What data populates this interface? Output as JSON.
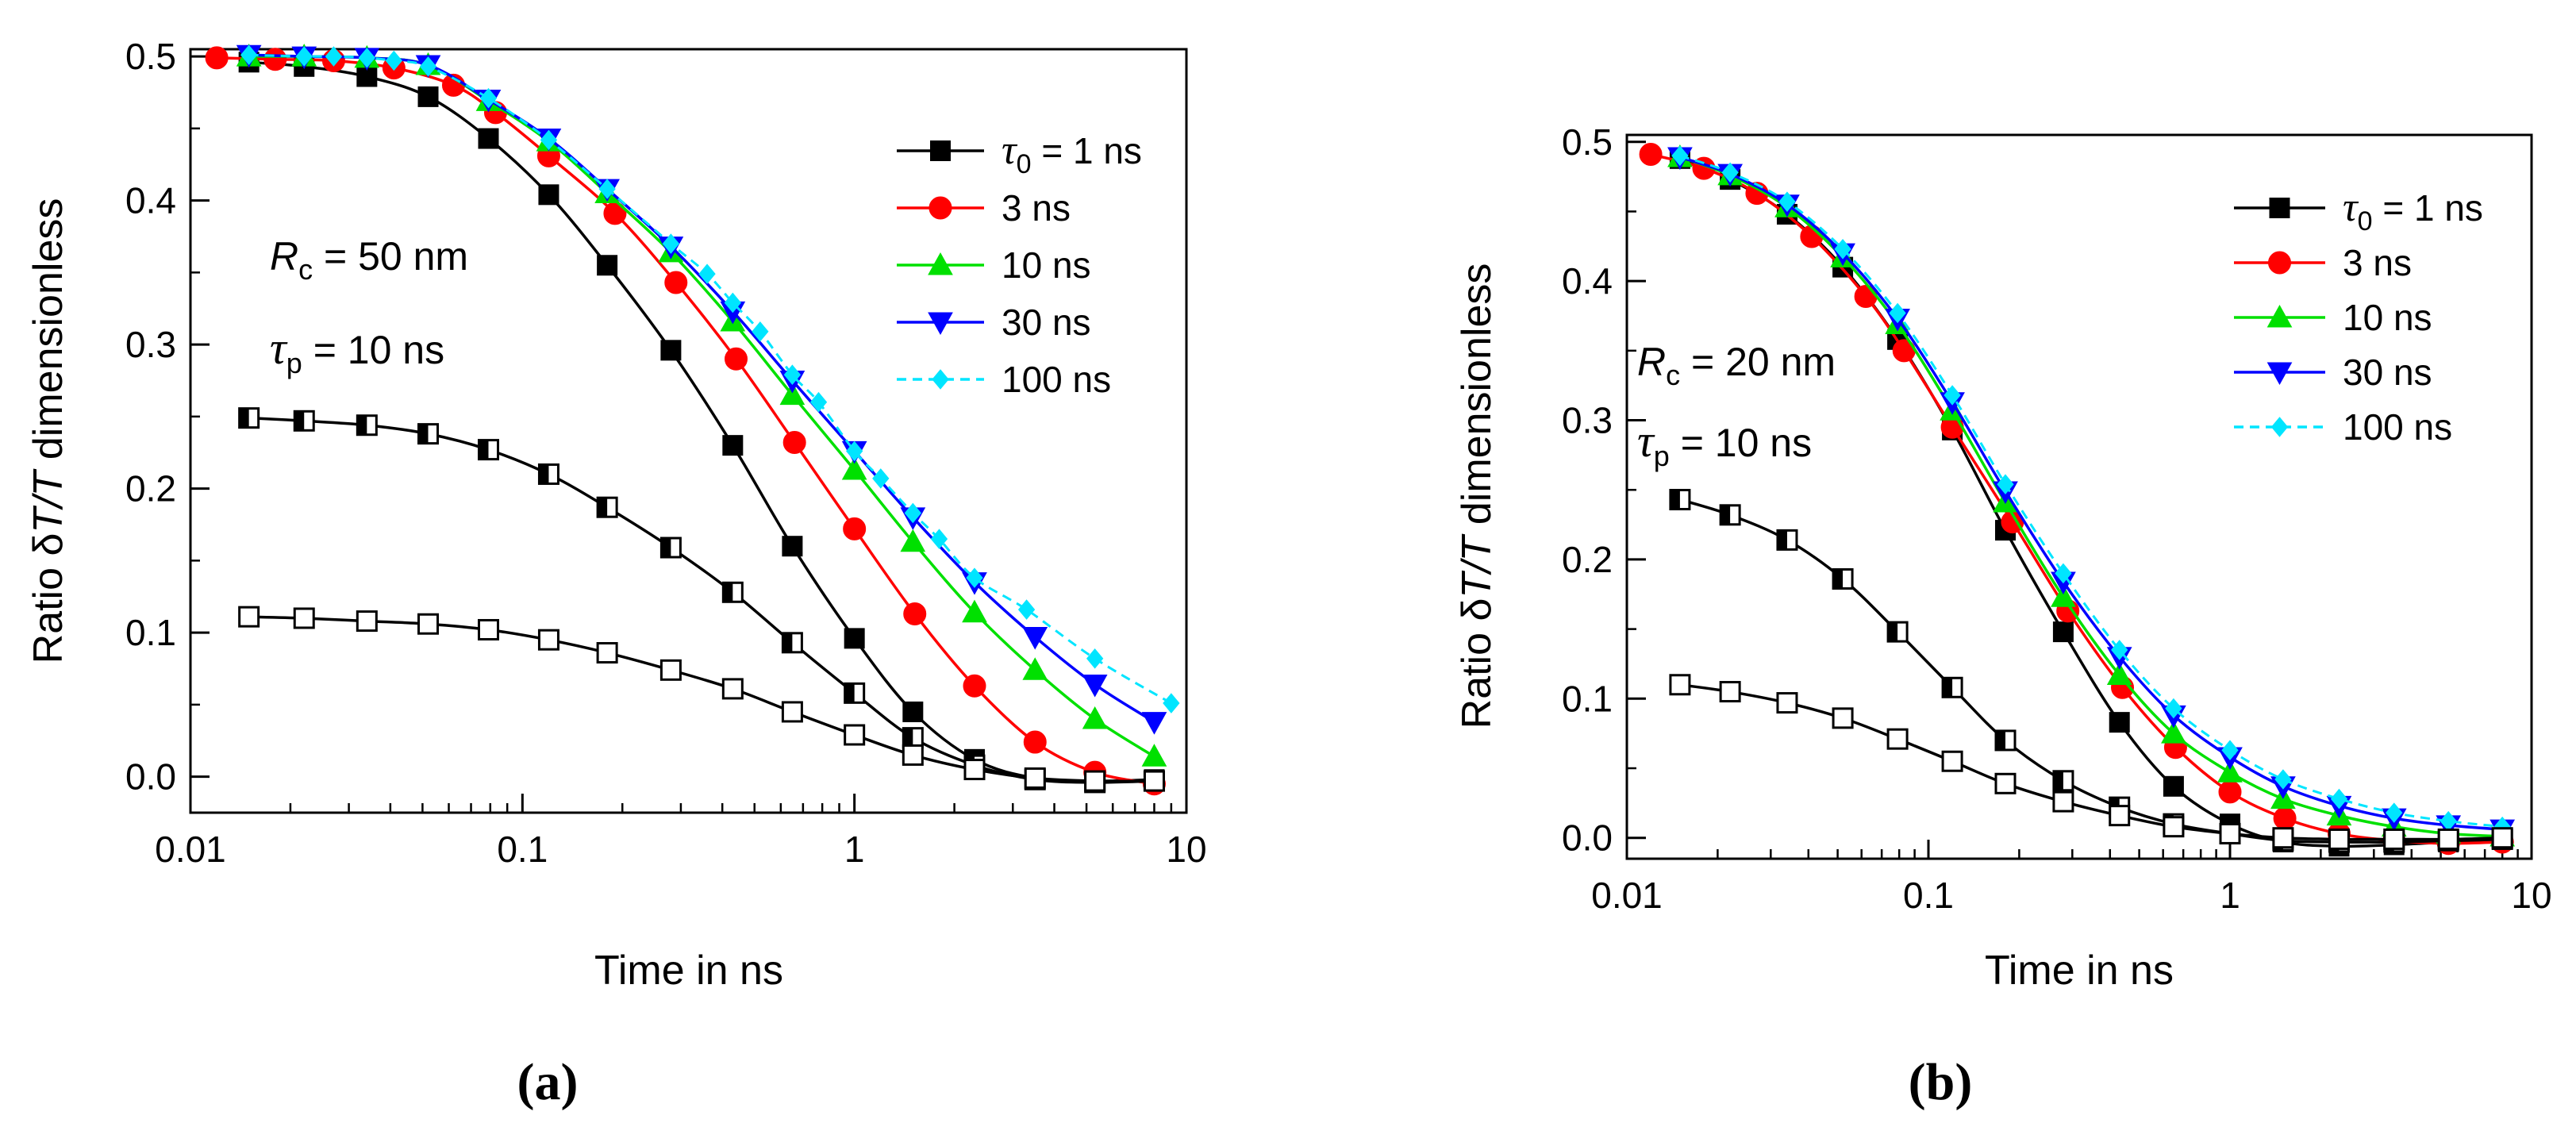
{
  "chart_data": [
    {
      "type": "line",
      "panel_label": "(a)",
      "xscale": "log",
      "xlim": [
        0.01,
        10
      ],
      "ylim": [
        -0.025,
        0.505
      ],
      "xticks": [
        0.01,
        0.1,
        1,
        10
      ],
      "xtick_labels": [
        "0.01",
        "0.1",
        "1",
        "10"
      ],
      "yticks": [
        0.0,
        0.1,
        0.2,
        0.3,
        0.4,
        0.5
      ],
      "ytick_labels": [
        "0.0",
        "0.1",
        "0.2",
        "0.3",
        "0.4",
        "0.5"
      ],
      "xlabel": "Time in ns",
      "ylabel_parts": [
        "Ratio δ",
        "T/T",
        " dimensionless"
      ],
      "annotations": [
        {
          "sym": "R",
          "sub": "c",
          "text": " = 50 nm"
        },
        {
          "sym": "τ",
          "sub": "p",
          "text": " = 10 ns"
        }
      ],
      "legend": [
        {
          "sym": "τ",
          "sub": "0",
          "text": " = 1 ns",
          "series": 0
        },
        {
          "text": "3 ns",
          "series": 1
        },
        {
          "text": "10 ns",
          "series": 2
        },
        {
          "text": "30 ns",
          "series": 3
        },
        {
          "text": "100 ns",
          "series": 4
        }
      ],
      "series": [
        {
          "name": "τ0 = 1 ns",
          "color": "#000000",
          "marker": "square",
          "dash": false,
          "x": [
            0.015,
            0.022,
            0.034,
            0.052,
            0.079,
            0.12,
            0.18,
            0.28,
            0.43,
            0.65,
            1.0,
            1.5,
            2.3,
            3.5,
            5.3,
            8.0
          ],
          "y": [
            0.496,
            0.493,
            0.486,
            0.472,
            0.443,
            0.404,
            0.355,
            0.296,
            0.23,
            0.16,
            0.096,
            0.045,
            0.012,
            -0.001,
            -0.003,
            -0.002
          ]
        },
        {
          "name": "3 ns",
          "color": "#ff0000",
          "marker": "circle",
          "dash": false,
          "x": [
            0.012,
            0.018,
            0.027,
            0.041,
            0.062,
            0.083,
            0.12,
            0.19,
            0.29,
            0.44,
            0.66,
            1.0,
            1.52,
            2.3,
            3.5,
            5.3,
            8.0
          ],
          "y": [
            0.499,
            0.498,
            0.497,
            0.492,
            0.48,
            0.461,
            0.431,
            0.391,
            0.343,
            0.29,
            0.232,
            0.172,
            0.113,
            0.063,
            0.024,
            0.003,
            -0.005
          ]
        },
        {
          "name": "10 ns",
          "color": "#00e000",
          "marker": "triangle-up",
          "dash": false,
          "x": [
            0.015,
            0.022,
            0.034,
            0.052,
            0.079,
            0.12,
            0.18,
            0.28,
            0.43,
            0.65,
            1.0,
            1.5,
            2.3,
            3.5,
            5.3,
            8.0
          ],
          "y": [
            0.5,
            0.5,
            0.499,
            0.494,
            0.469,
            0.441,
            0.405,
            0.364,
            0.316,
            0.265,
            0.213,
            0.163,
            0.114,
            0.074,
            0.04,
            0.014
          ]
        },
        {
          "name": "30 ns",
          "color": "#0000ff",
          "marker": "triangle-down",
          "dash": false,
          "x": [
            0.015,
            0.022,
            0.034,
            0.052,
            0.079,
            0.12,
            0.18,
            0.28,
            0.43,
            0.65,
            1.0,
            1.5,
            2.3,
            3.5,
            5.3,
            8.0
          ],
          "y": [
            0.501,
            0.5,
            0.499,
            0.494,
            0.47,
            0.443,
            0.408,
            0.368,
            0.323,
            0.275,
            0.226,
            0.18,
            0.135,
            0.097,
            0.064,
            0.038
          ]
        },
        {
          "name": "100 ns",
          "color": "#00e5ff",
          "marker": "diamond",
          "dash": true,
          "x": [
            0.015,
            0.022,
            0.027,
            0.034,
            0.041,
            0.052,
            0.079,
            0.12,
            0.18,
            0.28,
            0.36,
            0.43,
            0.52,
            0.65,
            0.78,
            1.0,
            1.2,
            1.5,
            1.8,
            2.3,
            3.3,
            5.3,
            9.0
          ],
          "y": [
            0.501,
            0.5,
            0.5,
            0.499,
            0.497,
            0.493,
            0.471,
            0.442,
            0.408,
            0.37,
            0.349,
            0.329,
            0.309,
            0.279,
            0.26,
            0.226,
            0.207,
            0.183,
            0.165,
            0.138,
            0.116,
            0.082,
            0.051
          ]
        },
        {
          "name": "half-filled squares",
          "color": "#000000",
          "marker": "square-half",
          "dash": false,
          "x": [
            0.015,
            0.022,
            0.034,
            0.052,
            0.079,
            0.12,
            0.18,
            0.28,
            0.43,
            0.65,
            1.0,
            1.5,
            2.3,
            3.5,
            5.3,
            8.0
          ],
          "y": [
            0.249,
            0.247,
            0.244,
            0.238,
            0.227,
            0.21,
            0.187,
            0.159,
            0.128,
            0.093,
            0.058,
            0.027,
            0.008,
            -0.002,
            -0.004,
            -0.003
          ]
        },
        {
          "name": "open squares",
          "color": "#000000",
          "marker": "square-open",
          "dash": false,
          "x": [
            0.015,
            0.022,
            0.034,
            0.052,
            0.079,
            0.12,
            0.18,
            0.28,
            0.43,
            0.65,
            1.0,
            1.5,
            2.3,
            3.5,
            5.3,
            8.0
          ],
          "y": [
            0.111,
            0.11,
            0.108,
            0.106,
            0.102,
            0.095,
            0.086,
            0.074,
            0.061,
            0.045,
            0.029,
            0.015,
            0.005,
            -0.001,
            -0.003,
            -0.003
          ]
        }
      ]
    },
    {
      "type": "line",
      "panel_label": "(b)",
      "xscale": "log",
      "xlim": [
        0.01,
        10
      ],
      "ylim": [
        -0.015,
        0.505
      ],
      "xticks": [
        0.01,
        0.1,
        1,
        10
      ],
      "xtick_labels": [
        "0.01",
        "0.1",
        "1",
        "10"
      ],
      "yticks": [
        0.0,
        0.1,
        0.2,
        0.3,
        0.4,
        0.5
      ],
      "ytick_labels": [
        "0.0",
        "0.1",
        "0.2",
        "0.3",
        "0.4",
        "0.5"
      ],
      "xlabel": "Time in ns",
      "ylabel_parts": [
        "Ratio δ",
        "T/T",
        " dimensionless"
      ],
      "annotations": [
        {
          "sym": "R",
          "sub": "c",
          "text": " = 20 nm"
        },
        {
          "sym": "τ",
          "sub": "p",
          "text": " = 10 ns"
        }
      ],
      "legend": [
        {
          "sym": "τ",
          "sub": "0",
          "text": " = 1 ns",
          "series": 0
        },
        {
          "text": "3 ns",
          "series": 1
        },
        {
          "text": "10 ns",
          "series": 2
        },
        {
          "text": "30 ns",
          "series": 3
        },
        {
          "text": "100 ns",
          "series": 4
        }
      ],
      "series": [
        {
          "name": "τ0 = 1 ns",
          "color": "#000000",
          "marker": "square",
          "dash": false,
          "x": [
            0.015,
            0.022,
            0.034,
            0.052,
            0.079,
            0.12,
            0.18,
            0.28,
            0.43,
            0.65,
            1.0,
            1.5,
            2.3,
            3.5,
            5.3,
            8.0
          ],
          "y": [
            0.488,
            0.473,
            0.448,
            0.41,
            0.358,
            0.293,
            0.221,
            0.148,
            0.083,
            0.037,
            0.01,
            -0.003,
            -0.006,
            -0.005,
            -0.003,
            -0.001
          ]
        },
        {
          "name": "3 ns",
          "color": "#ff0000",
          "marker": "circle",
          "dash": false,
          "x": [
            0.012,
            0.018,
            0.027,
            0.041,
            0.062,
            0.083,
            0.12,
            0.19,
            0.29,
            0.44,
            0.66,
            1.0,
            1.52,
            2.3,
            3.5,
            5.3,
            8.0
          ],
          "y": [
            0.491,
            0.481,
            0.463,
            0.432,
            0.389,
            0.35,
            0.295,
            0.227,
            0.163,
            0.108,
            0.065,
            0.033,
            0.014,
            0.003,
            -0.002,
            -0.004,
            -0.003
          ]
        },
        {
          "name": "10 ns",
          "color": "#00e000",
          "marker": "triangle-up",
          "dash": false,
          "x": [
            0.015,
            0.022,
            0.034,
            0.052,
            0.079,
            0.12,
            0.18,
            0.28,
            0.43,
            0.65,
            1.0,
            1.5,
            2.3,
            3.5,
            5.3,
            8.0
          ],
          "y": [
            0.489,
            0.476,
            0.453,
            0.417,
            0.369,
            0.307,
            0.241,
            0.173,
            0.117,
            0.075,
            0.047,
            0.028,
            0.016,
            0.008,
            0.003,
            0.001
          ]
        },
        {
          "name": "30 ns",
          "color": "#0000ff",
          "marker": "triangle-down",
          "dash": false,
          "x": [
            0.015,
            0.022,
            0.034,
            0.052,
            0.079,
            0.12,
            0.18,
            0.28,
            0.43,
            0.65,
            1.0,
            1.5,
            2.3,
            3.5,
            5.3,
            8.0
          ],
          "y": [
            0.489,
            0.477,
            0.455,
            0.42,
            0.373,
            0.313,
            0.249,
            0.184,
            0.13,
            0.088,
            0.058,
            0.037,
            0.023,
            0.014,
            0.009,
            0.006
          ]
        },
        {
          "name": "100 ns",
          "color": "#00e5ff",
          "marker": "diamond",
          "dash": true,
          "x": [
            0.015,
            0.022,
            0.034,
            0.052,
            0.079,
            0.12,
            0.18,
            0.28,
            0.43,
            0.65,
            1.0,
            1.5,
            2.3,
            3.5,
            5.3,
            8.0
          ],
          "y": [
            0.49,
            0.478,
            0.457,
            0.423,
            0.377,
            0.318,
            0.254,
            0.19,
            0.135,
            0.093,
            0.063,
            0.042,
            0.028,
            0.018,
            0.012,
            0.008
          ]
        },
        {
          "name": "half-filled squares",
          "color": "#000000",
          "marker": "square-half",
          "dash": false,
          "x": [
            0.015,
            0.022,
            0.034,
            0.052,
            0.079,
            0.12,
            0.18,
            0.28,
            0.43,
            0.65,
            1.0,
            1.5,
            2.3,
            3.5,
            5.3,
            8.0
          ],
          "y": [
            0.243,
            0.232,
            0.214,
            0.186,
            0.148,
            0.108,
            0.07,
            0.041,
            0.022,
            0.01,
            0.003,
            -0.002,
            -0.003,
            -0.003,
            -0.002,
            -0.001
          ]
        },
        {
          "name": "open squares",
          "color": "#000000",
          "marker": "square-open",
          "dash": false,
          "x": [
            0.015,
            0.022,
            0.034,
            0.052,
            0.079,
            0.12,
            0.18,
            0.28,
            0.43,
            0.65,
            1.0,
            1.5,
            2.3,
            3.5,
            5.3,
            8.0
          ],
          "y": [
            0.11,
            0.105,
            0.097,
            0.086,
            0.071,
            0.055,
            0.039,
            0.026,
            0.016,
            0.008,
            0.003,
            0.0,
            -0.001,
            -0.001,
            -0.001,
            0.0
          ]
        }
      ]
    }
  ]
}
